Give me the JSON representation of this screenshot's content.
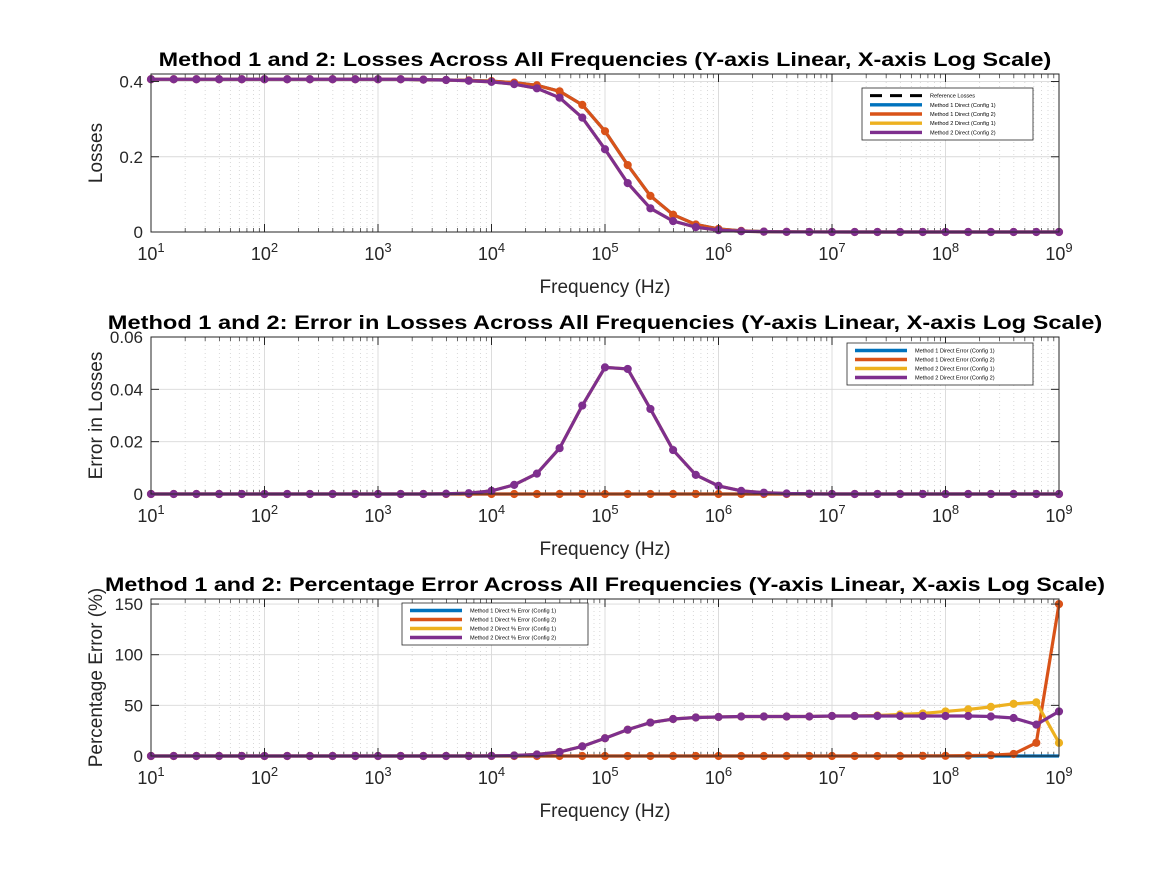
{
  "colors": {
    "reference": "#000000",
    "m1c1": "#0072BD",
    "m1c2": "#D95319",
    "m2c1": "#EDB120",
    "m2c2": "#7E2F8E",
    "grid": "#d9d9d9"
  },
  "chart_data": [
    {
      "type": "line",
      "title": "Method 1 and 2: Losses Across All Frequencies (Y-axis Linear, X-axis Log Scale)",
      "xlabel": "Frequency (Hz)",
      "ylabel": "Losses",
      "xscale": "log",
      "xlim": [
        10,
        1000000000
      ],
      "ylim": [
        0,
        0.42
      ],
      "yticks": [
        0,
        0.2,
        0.4
      ],
      "ytick_labels": [
        "0",
        "0.2",
        "0.4"
      ],
      "xtick_exponents": [
        "1",
        "2",
        "3",
        "4",
        "5",
        "6",
        "7",
        "8",
        "9"
      ],
      "xtick_base": "10",
      "grid": true,
      "legend_position": "top-right",
      "x": [
        10,
        15.85,
        25.12,
        39.81,
        63.1,
        100,
        158.5,
        251.2,
        398.1,
        631,
        1000,
        1585,
        2512,
        3981,
        6310,
        10000,
        15850,
        25120,
        39810,
        63100,
        100000,
        158500,
        251200,
        398100,
        631000,
        1000000,
        1585000,
        2512000,
        3981000,
        6310000,
        10000000,
        15850000,
        25120000,
        39810000,
        63100000,
        100000000,
        158500000,
        251200000,
        398100000,
        631000000,
        1000000000
      ],
      "series": [
        {
          "name": "Reference Losses",
          "color_key": "reference",
          "dashed": true,
          "markers": false,
          "values": [
            0.406,
            0.406,
            0.406,
            0.406,
            0.406,
            0.406,
            0.406,
            0.406,
            0.406,
            0.406,
            0.406,
            0.406,
            0.405,
            0.404,
            0.403,
            0.401,
            0.397,
            0.39,
            0.374,
            0.338,
            0.268,
            0.178,
            0.096,
            0.046,
            0.02,
            0.008,
            0.003,
            0.001,
            0.0005,
            0.0002,
            0.0001,
            0,
            0,
            0,
            0,
            0,
            0,
            0,
            0,
            0,
            0
          ]
        },
        {
          "name": "Method 1 Direct (Config 1)",
          "color_key": "m1c1",
          "dashed": false,
          "markers": false,
          "values": [
            0.406,
            0.406,
            0.406,
            0.406,
            0.406,
            0.406,
            0.406,
            0.406,
            0.406,
            0.406,
            0.406,
            0.406,
            0.405,
            0.404,
            0.403,
            0.401,
            0.397,
            0.39,
            0.374,
            0.338,
            0.268,
            0.178,
            0.096,
            0.046,
            0.02,
            0.008,
            0.003,
            0.001,
            0.0005,
            0.0002,
            0.0001,
            0,
            0,
            0,
            0,
            0,
            0,
            0,
            0,
            0,
            0
          ]
        },
        {
          "name": "Method 1 Direct (Config 2)",
          "color_key": "m1c2",
          "dashed": false,
          "markers": true,
          "values": [
            0.406,
            0.406,
            0.406,
            0.406,
            0.406,
            0.406,
            0.406,
            0.406,
            0.406,
            0.406,
            0.406,
            0.406,
            0.405,
            0.404,
            0.403,
            0.401,
            0.397,
            0.39,
            0.374,
            0.338,
            0.268,
            0.178,
            0.096,
            0.046,
            0.02,
            0.008,
            0.003,
            0.001,
            0.0005,
            0.0002,
            0.0001,
            0,
            0,
            0,
            0,
            0,
            0,
            0,
            0,
            0,
            0
          ]
        },
        {
          "name": "Method 2 Direct (Config 1)",
          "color_key": "m2c1",
          "dashed": false,
          "markers": false,
          "values": [
            0.406,
            0.406,
            0.406,
            0.406,
            0.406,
            0.406,
            0.406,
            0.406,
            0.406,
            0.406,
            0.406,
            0.406,
            0.405,
            0.404,
            0.402,
            0.399,
            0.393,
            0.382,
            0.357,
            0.304,
            0.22,
            0.13,
            0.063,
            0.029,
            0.013,
            0.005,
            0.002,
            0.001,
            0.0003,
            0.0001,
            0,
            0,
            0,
            0,
            0,
            0,
            0,
            0,
            0,
            0,
            0
          ]
        },
        {
          "name": "Method 2 Direct (Config 2)",
          "color_key": "m2c2",
          "dashed": false,
          "markers": true,
          "values": [
            0.406,
            0.406,
            0.406,
            0.406,
            0.406,
            0.406,
            0.406,
            0.406,
            0.406,
            0.406,
            0.406,
            0.406,
            0.405,
            0.404,
            0.402,
            0.399,
            0.393,
            0.382,
            0.357,
            0.304,
            0.22,
            0.13,
            0.063,
            0.029,
            0.013,
            0.005,
            0.002,
            0.001,
            0.0003,
            0.0001,
            0,
            0,
            0,
            0,
            0,
            0,
            0,
            0,
            0,
            0,
            0
          ]
        }
      ]
    },
    {
      "type": "line",
      "title": "Method 1 and 2: Error in Losses Across All Frequencies (Y-axis Linear, X-axis Log Scale)",
      "xlabel": "Frequency (Hz)",
      "ylabel": "Error in Losses",
      "xscale": "log",
      "xlim": [
        10,
        1000000000
      ],
      "ylim": [
        0,
        0.06
      ],
      "yticks": [
        0,
        0.02,
        0.04,
        0.06
      ],
      "ytick_labels": [
        "0",
        "0.02",
        "0.04",
        "0.06"
      ],
      "xtick_exponents": [
        "1",
        "2",
        "3",
        "4",
        "5",
        "6",
        "7",
        "8",
        "9"
      ],
      "xtick_base": "10",
      "grid": true,
      "legend_position": "top-right",
      "x": [
        10,
        15.85,
        25.12,
        39.81,
        63.1,
        100,
        158.5,
        251.2,
        398.1,
        631,
        1000,
        1585,
        2512,
        3981,
        6310,
        10000,
        15850,
        25120,
        39810,
        63100,
        100000,
        158500,
        251200,
        398100,
        631000,
        1000000,
        1585000,
        2512000,
        3981000,
        6310000,
        10000000,
        15850000,
        25120000,
        39810000,
        63100000,
        100000000,
        158500000,
        251200000,
        398100000,
        631000000,
        1000000000
      ],
      "series": [
        {
          "name": "Method 1 Direct Error (Config 1)",
          "color_key": "m1c1",
          "dashed": false,
          "markers": false,
          "values": [
            0,
            0,
            0,
            0,
            0,
            0,
            0,
            0,
            0,
            0,
            0,
            0,
            0,
            0,
            0,
            0,
            0,
            0,
            0,
            0,
            0,
            0,
            0,
            0,
            0,
            0,
            0,
            0,
            0,
            0,
            0,
            0,
            0,
            0,
            0,
            0,
            0,
            0,
            0,
            0,
            0
          ]
        },
        {
          "name": "Method 1 Direct Error (Config 2)",
          "color_key": "m1c2",
          "dashed": false,
          "markers": true,
          "values": [
            0,
            0,
            0,
            0,
            0,
            0,
            0,
            0,
            0,
            0,
            0,
            0,
            0,
            0,
            0,
            0,
            0,
            0,
            0,
            0,
            0,
            0,
            0,
            0,
            0,
            0,
            0,
            0,
            0,
            0,
            0,
            0,
            0,
            0,
            0,
            0,
            0,
            0,
            0,
            0,
            0
          ]
        },
        {
          "name": "Method 2 Direct Error (Config 1)",
          "color_key": "m2c1",
          "dashed": false,
          "markers": false,
          "values": [
            0,
            0,
            0,
            0,
            0,
            0,
            0,
            0,
            0,
            0,
            0,
            0,
            0,
            0.0001,
            0.0003,
            0.0012,
            0.0035,
            0.0078,
            0.0175,
            0.0338,
            0.0484,
            0.0478,
            0.0325,
            0.0168,
            0.0073,
            0.0031,
            0.0012,
            0.0005,
            0.0002,
            0.0001,
            0,
            0,
            0,
            0,
            0,
            0,
            0,
            0,
            0,
            0,
            0
          ]
        },
        {
          "name": "Method 2 Direct Error (Config 2)",
          "color_key": "m2c2",
          "dashed": false,
          "markers": true,
          "values": [
            0,
            0,
            0,
            0,
            0,
            0,
            0,
            0,
            0,
            0,
            0,
            0,
            0,
            0.0001,
            0.0003,
            0.0012,
            0.0035,
            0.0078,
            0.0175,
            0.0338,
            0.0484,
            0.0478,
            0.0325,
            0.0168,
            0.0073,
            0.0031,
            0.0012,
            0.0005,
            0.0002,
            0.0001,
            0,
            0,
            0,
            0,
            0,
            0,
            0,
            0,
            0,
            0,
            0
          ]
        }
      ]
    },
    {
      "type": "line",
      "title": "Method 1 and 2: Percentage Error Across All Frequencies (Y-axis Linear, X-axis Log Scale)",
      "xlabel": "Frequency (Hz)",
      "ylabel": "Percentage Error (%)",
      "xscale": "log",
      "xlim": [
        10,
        1000000000
      ],
      "ylim": [
        0,
        155
      ],
      "yticks": [
        0,
        50,
        100,
        150
      ],
      "ytick_labels": [
        "0",
        "50",
        "100",
        "150"
      ],
      "xtick_exponents": [
        "1",
        "2",
        "3",
        "4",
        "5",
        "6",
        "7",
        "8",
        "9"
      ],
      "xtick_base": "10",
      "grid": true,
      "legend_position": "top-left",
      "x": [
        10,
        15.85,
        25.12,
        39.81,
        63.1,
        100,
        158.5,
        251.2,
        398.1,
        631,
        1000,
        1585,
        2512,
        3981,
        6310,
        10000,
        15850,
        25120,
        39810,
        63100,
        100000,
        158500,
        251200,
        398100,
        631000,
        1000000,
        1585000,
        2512000,
        3981000,
        6310000,
        10000000,
        15850000,
        25120000,
        39810000,
        63100000,
        100000000,
        158500000,
        251200000,
        398100000,
        631000000,
        1000000000
      ],
      "series": [
        {
          "name": "Method 1 Direct % Error (Config 1)",
          "color_key": "m1c1",
          "dashed": false,
          "markers": false,
          "values": [
            0,
            0,
            0,
            0,
            0,
            0,
            0,
            0,
            0,
            0,
            0,
            0,
            0,
            0,
            0,
            0,
            0,
            0,
            0,
            0,
            0,
            0,
            0,
            0,
            0,
            0,
            0,
            0,
            0,
            0,
            0,
            0,
            0,
            0,
            0,
            0,
            0,
            0,
            0,
            0,
            0
          ]
        },
        {
          "name": "Method 1 Direct % Error (Config 2)",
          "color_key": "m1c2",
          "dashed": false,
          "markers": true,
          "values": [
            0,
            0,
            0,
            0,
            0,
            0,
            0,
            0,
            0,
            0,
            0,
            0,
            0,
            0,
            0,
            0,
            0,
            0,
            0,
            0,
            0,
            0,
            0,
            0,
            0,
            0,
            0,
            0,
            0,
            0,
            0,
            0,
            0,
            0,
            0.1,
            0.2,
            0.4,
            0.8,
            2,
            13,
            150
          ]
        },
        {
          "name": "Method 2 Direct % Error (Config 1)",
          "color_key": "m2c1",
          "dashed": false,
          "markers": true,
          "values": [
            0,
            0,
            0,
            0,
            0,
            0,
            0,
            0,
            0,
            0,
            0,
            0,
            0,
            0,
            0,
            0.1,
            0.5,
            1.5,
            4,
            9.5,
            17.5,
            26,
            33,
            36.5,
            38,
            38.5,
            39,
            39,
            39,
            39,
            39.5,
            39.5,
            40,
            41,
            42,
            44,
            46,
            48.5,
            51.5,
            53,
            13
          ]
        },
        {
          "name": "Method 2 Direct % Error (Config 2)",
          "color_key": "m2c2",
          "dashed": false,
          "markers": true,
          "values": [
            0,
            0,
            0,
            0,
            0,
            0,
            0,
            0,
            0,
            0,
            0,
            0,
            0,
            0,
            0,
            0.1,
            0.5,
            1.5,
            4,
            9.5,
            17.5,
            26,
            33,
            36.5,
            38,
            38.5,
            39,
            39,
            39,
            39,
            39.5,
            39.5,
            39.5,
            39.5,
            39.5,
            39.5,
            39.5,
            39,
            37.5,
            31,
            44
          ]
        }
      ]
    }
  ]
}
